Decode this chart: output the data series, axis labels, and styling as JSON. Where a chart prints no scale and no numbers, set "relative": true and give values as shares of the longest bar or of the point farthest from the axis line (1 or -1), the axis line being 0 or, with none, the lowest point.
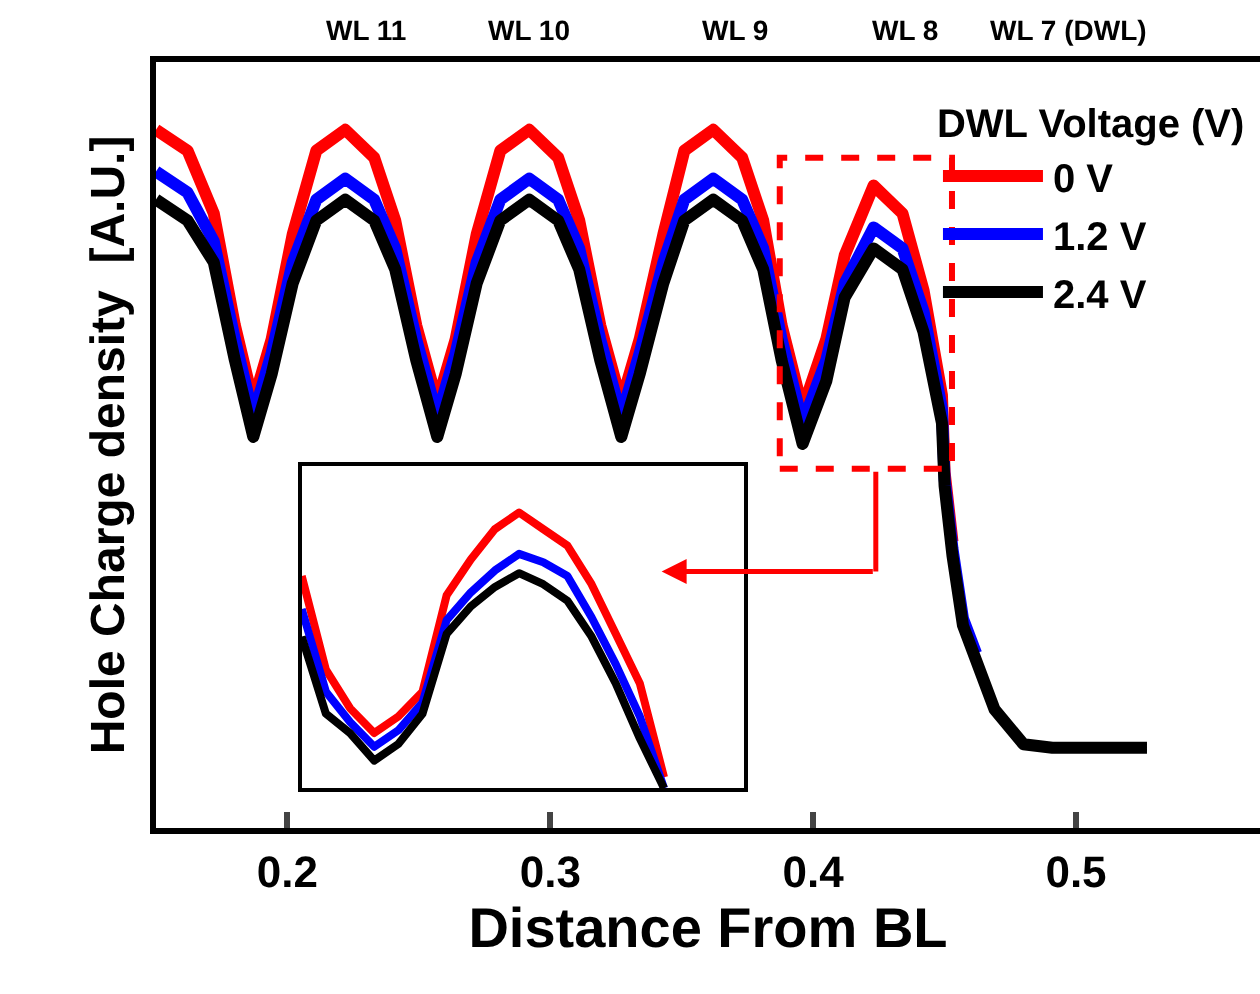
{
  "chart_data": [
    {
      "type": "line",
      "xlabel": "Distance From BL",
      "ylabel": "Hole Charge density  [A.U.]",
      "relative": true,
      "xlim": [
        0.15,
        0.57
      ],
      "xticks": [
        0.2,
        0.3,
        0.4,
        0.5
      ],
      "annotations": [
        "WL 11",
        "WL 10",
        "WL 9",
        "WL 8",
        "WL 7 (DWL)"
      ],
      "tick_labels": "x",
      "legend": "top right",
      "legend_title": "DWL Voltage (V)",
      "x": [
        0.15,
        0.162,
        0.172,
        0.18,
        0.187,
        0.194,
        0.202,
        0.211,
        0.222,
        0.233,
        0.241,
        0.249,
        0.257,
        0.264,
        0.272,
        0.281,
        0.292,
        0.303,
        0.311,
        0.319,
        0.327,
        0.334,
        0.343,
        0.351,
        0.362,
        0.373,
        0.381,
        0.388,
        0.396,
        0.405,
        0.412,
        0.423,
        0.434,
        0.442,
        0.449,
        0.45,
        0.453,
        0.457,
        0.462,
        0.469,
        0.48,
        0.491,
        0.527
      ],
      "series": [
        {
          "name": "0 V",
          "color": "#ff0000",
          "values": [
            1.0,
            0.97,
            0.88,
            0.72,
            0.61,
            0.7,
            0.85,
            0.97,
            1.0,
            0.96,
            0.87,
            0.72,
            0.61,
            0.7,
            0.85,
            0.97,
            1.0,
            0.96,
            0.87,
            0.72,
            0.61,
            0.7,
            0.85,
            0.97,
            1.0,
            0.96,
            0.87,
            0.72,
            0.6,
            0.7,
            0.82,
            0.92,
            0.88,
            0.77,
            0.62,
            0.51,
            0.41,
            null,
            null,
            null,
            null,
            null,
            null
          ]
        },
        {
          "name": "1.2 V",
          "color": "#0000ff",
          "values": [
            0.94,
            0.91,
            0.84,
            0.7,
            0.59,
            0.68,
            0.81,
            0.9,
            0.93,
            0.9,
            0.83,
            0.7,
            0.59,
            0.68,
            0.81,
            0.9,
            0.93,
            0.9,
            0.83,
            0.7,
            0.59,
            0.68,
            0.81,
            0.9,
            0.93,
            0.9,
            0.83,
            0.7,
            0.58,
            0.67,
            0.78,
            0.86,
            0.83,
            0.74,
            0.6,
            0.5,
            0.4,
            0.3,
            0.25,
            null,
            null,
            null,
            null
          ]
        },
        {
          "name": "2.4 V",
          "color": "#000000",
          "values": [
            0.9,
            0.87,
            0.81,
            0.67,
            0.56,
            0.65,
            0.78,
            0.87,
            0.9,
            0.87,
            0.8,
            0.67,
            0.56,
            0.65,
            0.78,
            0.87,
            0.9,
            0.87,
            0.8,
            0.67,
            0.56,
            0.65,
            0.78,
            0.87,
            0.9,
            0.87,
            0.8,
            0.67,
            0.55,
            0.64,
            0.76,
            0.83,
            0.8,
            0.71,
            0.58,
            0.49,
            0.39,
            0.29,
            0.24,
            0.17,
            0.12,
            0.115,
            0.115
          ]
        }
      ]
    },
    {
      "type": "line",
      "relative": true,
      "tick_labels": false,
      "legend": false,
      "categories": [
        null,
        null,
        null,
        null,
        null,
        null,
        null,
        null,
        null,
        null,
        null,
        null,
        null,
        null,
        null,
        null
      ],
      "series": [
        {
          "color": "#ff0000",
          "values": [
            0.77,
            0.43,
            0.29,
            0.2,
            0.26,
            0.35,
            0.7,
            0.83,
            0.94,
            1.0,
            0.94,
            0.88,
            0.74,
            0.56,
            0.38,
            0.04
          ]
        },
        {
          "color": "#0000ff",
          "values": [
            0.65,
            0.35,
            0.24,
            0.15,
            0.21,
            0.31,
            0.61,
            0.71,
            0.79,
            0.85,
            0.82,
            0.77,
            0.62,
            0.45,
            0.26,
            0
          ]
        },
        {
          "color": "#000000",
          "values": [
            0.55,
            0.27,
            0.2,
            0.1,
            0.16,
            0.27,
            0.56,
            0.66,
            0.73,
            0.78,
            0.74,
            0.68,
            0.55,
            0.38,
            0.18,
            0
          ]
        }
      ]
    }
  ]
}
